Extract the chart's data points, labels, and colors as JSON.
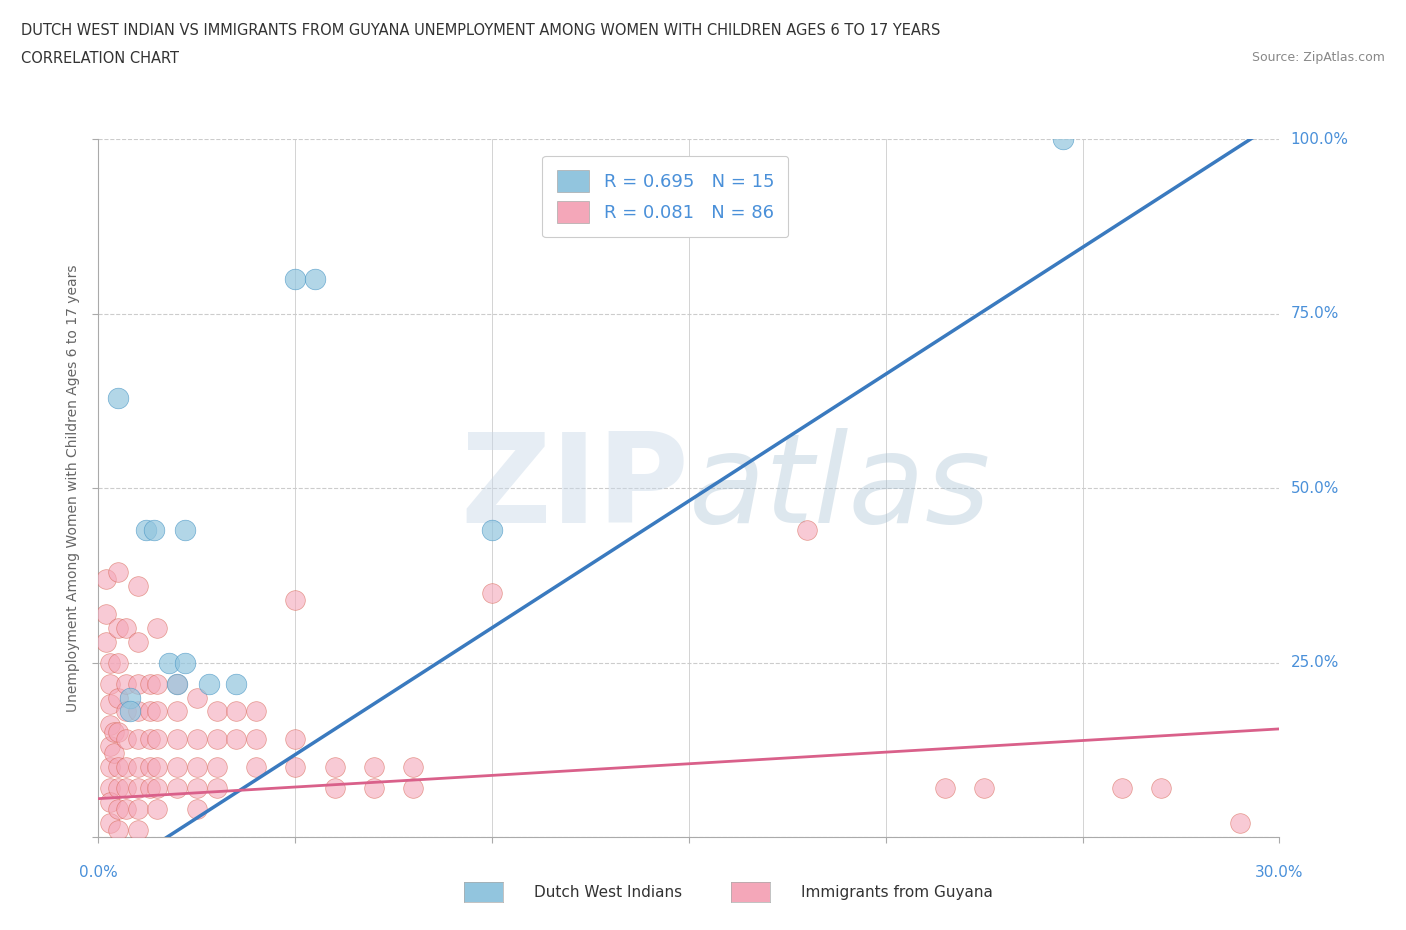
{
  "title_line1": "DUTCH WEST INDIAN VS IMMIGRANTS FROM GUYANA UNEMPLOYMENT AMONG WOMEN WITH CHILDREN AGES 6 TO 17 YEARS",
  "title_line2": "CORRELATION CHART",
  "source_text": "Source: ZipAtlas.com",
  "watermark_zip": "ZIP",
  "watermark_atlas": "atlas",
  "ylabel": "Unemployment Among Women with Children Ages 6 to 17 years",
  "xlim": [
    0.0,
    0.3
  ],
  "ylim": [
    0.0,
    1.0
  ],
  "xticks": [
    0.0,
    0.05,
    0.1,
    0.15,
    0.2,
    0.25,
    0.3
  ],
  "yticks": [
    0.0,
    0.25,
    0.5,
    0.75,
    1.0
  ],
  "blue_color": "#92c5de",
  "blue_edge_color": "#4393c3",
  "pink_color": "#f4a7b9",
  "pink_edge_color": "#d6604d",
  "blue_R": 0.695,
  "blue_N": 15,
  "pink_R": 0.081,
  "pink_N": 86,
  "blue_scatter": [
    [
      0.005,
      0.63
    ],
    [
      0.008,
      0.2
    ],
    [
      0.008,
      0.18
    ],
    [
      0.012,
      0.44
    ],
    [
      0.014,
      0.44
    ],
    [
      0.018,
      0.25
    ],
    [
      0.02,
      0.22
    ],
    [
      0.022,
      0.44
    ],
    [
      0.022,
      0.25
    ],
    [
      0.028,
      0.22
    ],
    [
      0.035,
      0.22
    ],
    [
      0.05,
      0.8
    ],
    [
      0.055,
      0.8
    ],
    [
      0.1,
      0.44
    ],
    [
      0.245,
      1.0
    ]
  ],
  "pink_scatter": [
    [
      0.002,
      0.37
    ],
    [
      0.002,
      0.32
    ],
    [
      0.002,
      0.28
    ],
    [
      0.003,
      0.25
    ],
    [
      0.003,
      0.22
    ],
    [
      0.003,
      0.19
    ],
    [
      0.003,
      0.16
    ],
    [
      0.003,
      0.13
    ],
    [
      0.003,
      0.1
    ],
    [
      0.003,
      0.07
    ],
    [
      0.003,
      0.05
    ],
    [
      0.003,
      0.02
    ],
    [
      0.004,
      0.15
    ],
    [
      0.004,
      0.12
    ],
    [
      0.005,
      0.38
    ],
    [
      0.005,
      0.3
    ],
    [
      0.005,
      0.25
    ],
    [
      0.005,
      0.2
    ],
    [
      0.005,
      0.15
    ],
    [
      0.005,
      0.1
    ],
    [
      0.005,
      0.07
    ],
    [
      0.005,
      0.04
    ],
    [
      0.005,
      0.01
    ],
    [
      0.007,
      0.3
    ],
    [
      0.007,
      0.22
    ],
    [
      0.007,
      0.18
    ],
    [
      0.007,
      0.14
    ],
    [
      0.007,
      0.1
    ],
    [
      0.007,
      0.07
    ],
    [
      0.007,
      0.04
    ],
    [
      0.01,
      0.36
    ],
    [
      0.01,
      0.28
    ],
    [
      0.01,
      0.22
    ],
    [
      0.01,
      0.18
    ],
    [
      0.01,
      0.14
    ],
    [
      0.01,
      0.1
    ],
    [
      0.01,
      0.07
    ],
    [
      0.01,
      0.04
    ],
    [
      0.01,
      0.01
    ],
    [
      0.013,
      0.22
    ],
    [
      0.013,
      0.18
    ],
    [
      0.013,
      0.14
    ],
    [
      0.013,
      0.1
    ],
    [
      0.013,
      0.07
    ],
    [
      0.015,
      0.3
    ],
    [
      0.015,
      0.22
    ],
    [
      0.015,
      0.18
    ],
    [
      0.015,
      0.14
    ],
    [
      0.015,
      0.1
    ],
    [
      0.015,
      0.07
    ],
    [
      0.015,
      0.04
    ],
    [
      0.02,
      0.22
    ],
    [
      0.02,
      0.18
    ],
    [
      0.02,
      0.14
    ],
    [
      0.02,
      0.1
    ],
    [
      0.02,
      0.07
    ],
    [
      0.025,
      0.2
    ],
    [
      0.025,
      0.14
    ],
    [
      0.025,
      0.1
    ],
    [
      0.025,
      0.07
    ],
    [
      0.025,
      0.04
    ],
    [
      0.03,
      0.18
    ],
    [
      0.03,
      0.14
    ],
    [
      0.03,
      0.1
    ],
    [
      0.03,
      0.07
    ],
    [
      0.035,
      0.18
    ],
    [
      0.035,
      0.14
    ],
    [
      0.04,
      0.18
    ],
    [
      0.04,
      0.14
    ],
    [
      0.04,
      0.1
    ],
    [
      0.05,
      0.34
    ],
    [
      0.05,
      0.14
    ],
    [
      0.05,
      0.1
    ],
    [
      0.06,
      0.1
    ],
    [
      0.06,
      0.07
    ],
    [
      0.07,
      0.1
    ],
    [
      0.07,
      0.07
    ],
    [
      0.08,
      0.1
    ],
    [
      0.08,
      0.07
    ],
    [
      0.1,
      0.35
    ],
    [
      0.18,
      0.44
    ],
    [
      0.215,
      0.07
    ],
    [
      0.225,
      0.07
    ],
    [
      0.26,
      0.07
    ],
    [
      0.27,
      0.07
    ],
    [
      0.29,
      0.02
    ]
  ],
  "blue_line_x": [
    -0.01,
    0.32
  ],
  "blue_line_y": [
    -0.1,
    1.1
  ],
  "pink_line_x": [
    0.0,
    0.3
  ],
  "pink_line_y": [
    0.055,
    0.155
  ],
  "background_color": "#ffffff",
  "grid_color": "#cccccc",
  "title_color": "#333333",
  "axis_label_color": "#666666",
  "tick_color": "#4a90d9",
  "legend_color": "#4a90d9"
}
